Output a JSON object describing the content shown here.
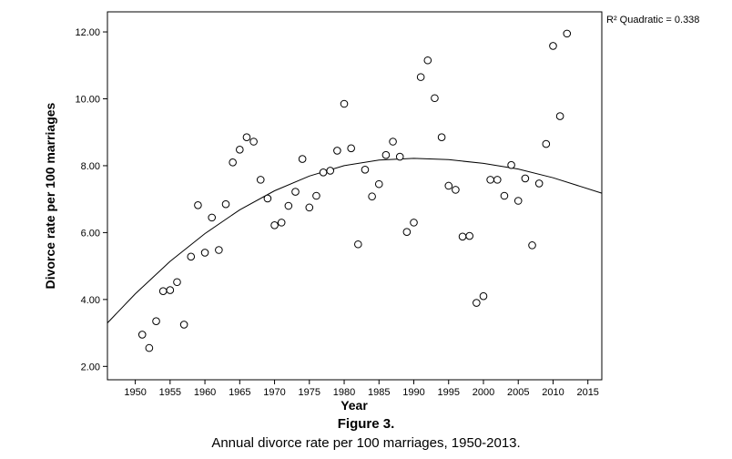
{
  "figure": {
    "number": "Figure 3.",
    "caption": "Annual divorce rate per 100 marriages, 1950-2013."
  },
  "chart_data": {
    "type": "scatter",
    "xlabel": "Year",
    "ylabel": "Divorce rate per 100 marriages",
    "xlim": [
      1946,
      2017
    ],
    "ylim": [
      1.6,
      12.6
    ],
    "xticks": [
      1950,
      1955,
      1960,
      1965,
      1970,
      1975,
      1980,
      1985,
      1990,
      1995,
      2000,
      2005,
      2010,
      2015
    ],
    "yticks": [
      2.0,
      4.0,
      6.0,
      8.0,
      10.0,
      12.0
    ],
    "ytick_labels": [
      "2.00",
      "4.00",
      "6.00",
      "8.00",
      "10.00",
      "12.00"
    ],
    "grid": false,
    "fit_label": "R² Quadratic = 0.338",
    "points": [
      [
        1951,
        2.95
      ],
      [
        1952,
        2.55
      ],
      [
        1953,
        3.35
      ],
      [
        1954,
        4.25
      ],
      [
        1955,
        4.28
      ],
      [
        1956,
        4.52
      ],
      [
        1957,
        3.25
      ],
      [
        1958,
        5.28
      ],
      [
        1959,
        6.82
      ],
      [
        1960,
        5.4
      ],
      [
        1961,
        6.45
      ],
      [
        1962,
        5.48
      ],
      [
        1963,
        6.85
      ],
      [
        1964,
        8.1
      ],
      [
        1965,
        8.48
      ],
      [
        1966,
        8.85
      ],
      [
        1967,
        8.72
      ],
      [
        1968,
        7.58
      ],
      [
        1969,
        7.02
      ],
      [
        1970,
        6.22
      ],
      [
        1971,
        6.3
      ],
      [
        1972,
        6.8
      ],
      [
        1973,
        7.22
      ],
      [
        1974,
        8.2
      ],
      [
        1975,
        6.75
      ],
      [
        1976,
        7.1
      ],
      [
        1977,
        7.8
      ],
      [
        1978,
        7.85
      ],
      [
        1979,
        8.45
      ],
      [
        1980,
        9.85
      ],
      [
        1981,
        8.52
      ],
      [
        1982,
        5.65
      ],
      [
        1983,
        7.88
      ],
      [
        1984,
        7.08
      ],
      [
        1985,
        7.45
      ],
      [
        1986,
        8.32
      ],
      [
        1987,
        8.72
      ],
      [
        1988,
        8.27
      ],
      [
        1989,
        6.02
      ],
      [
        1990,
        6.3
      ],
      [
        1991,
        10.65
      ],
      [
        1992,
        11.15
      ],
      [
        1993,
        10.02
      ],
      [
        1994,
        8.85
      ],
      [
        1995,
        7.4
      ],
      [
        1996,
        7.28
      ],
      [
        1997,
        5.88
      ],
      [
        1998,
        5.9
      ],
      [
        1999,
        3.9
      ],
      [
        2000,
        4.1
      ],
      [
        2001,
        7.58
      ],
      [
        2002,
        7.58
      ],
      [
        2003,
        7.1
      ],
      [
        2004,
        8.02
      ],
      [
        2005,
        6.95
      ],
      [
        2006,
        7.62
      ],
      [
        2007,
        5.62
      ],
      [
        2008,
        7.47
      ],
      [
        2009,
        8.65
      ],
      [
        2010,
        11.58
      ],
      [
        2011,
        9.48
      ],
      [
        2012,
        11.95
      ]
    ],
    "fit_curve": [
      [
        1946,
        3.3
      ],
      [
        1950,
        4.17
      ],
      [
        1955,
        5.14
      ],
      [
        1960,
        5.97
      ],
      [
        1965,
        6.68
      ],
      [
        1970,
        7.25
      ],
      [
        1975,
        7.69
      ],
      [
        1980,
        8.0
      ],
      [
        1985,
        8.17
      ],
      [
        1990,
        8.22
      ],
      [
        1995,
        8.18
      ],
      [
        2000,
        8.07
      ],
      [
        2005,
        7.9
      ],
      [
        2010,
        7.64
      ],
      [
        2017,
        7.18
      ]
    ]
  }
}
